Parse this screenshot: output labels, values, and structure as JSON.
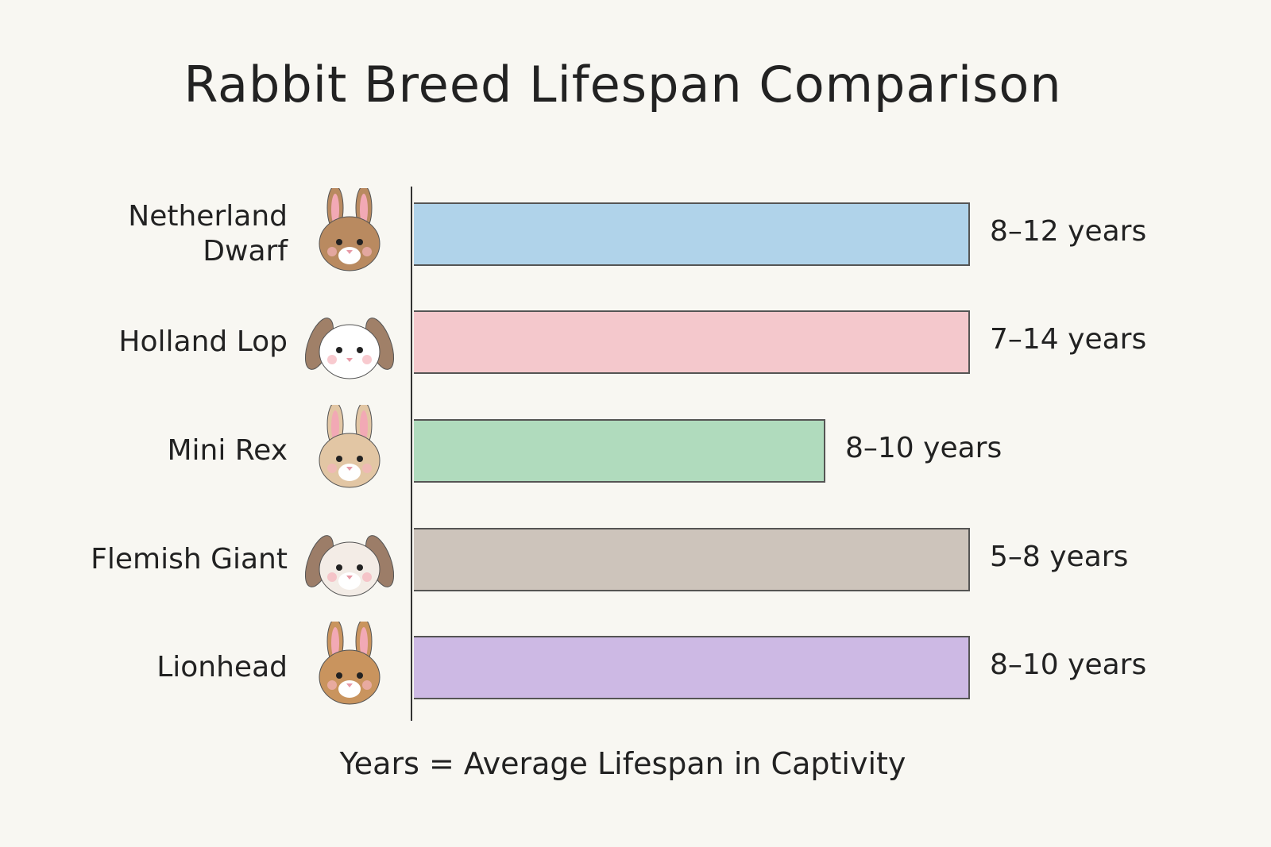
{
  "chart_data": {
    "type": "bar",
    "orientation": "horizontal",
    "title": "Rabbit Breed Lifespan Comparison",
    "xlabel": "Years = Average Lifespan in Captivity",
    "grid": false,
    "categories": [
      "Netherland Dwarf",
      "Holland Lop",
      "Mini Rex",
      "Flemish Giant",
      "Lionhead"
    ],
    "series": [
      {
        "ranges": [
          [
            8,
            12
          ],
          [
            7,
            14
          ],
          [
            8,
            10
          ],
          [
            5,
            8
          ],
          [
            8,
            10
          ]
        ],
        "labels": [
          "8–12 years",
          "7–14 years",
          "8–10 years",
          "5–8 years",
          "8–10 years"
        ],
        "bar_extent": [
          1.0,
          1.0,
          0.74,
          1.0,
          1.0
        ],
        "colors": [
          "#a9d0ea",
          "#f4c4c8",
          "#a9d8b8",
          "#c9bfb6",
          "#c9b3e3"
        ]
      }
    ],
    "icons": [
      "rabbit-upright-ears-brown-icon",
      "rabbit-lop-white-brown-icon",
      "rabbit-upright-ears-tan-icon",
      "rabbit-lop-brown-white-icon",
      "rabbit-lionhead-icon"
    ]
  }
}
